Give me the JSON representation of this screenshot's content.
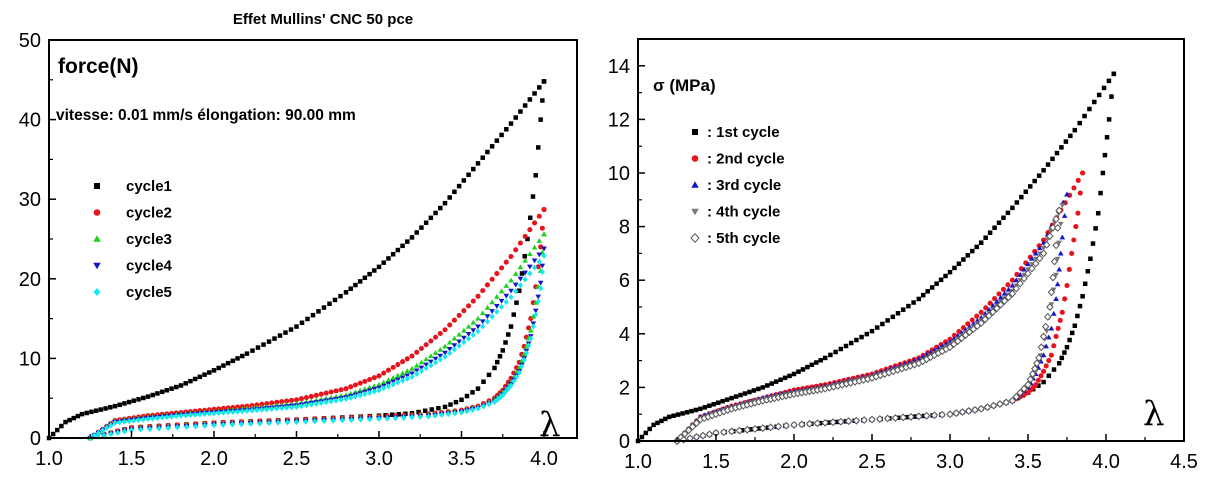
{
  "chart_data": [
    {
      "type": "scatter",
      "title": "Effet Mullins' CNC 50 pce",
      "ylabel": "force(N)",
      "xlabel": "λ",
      "annotation": "vitesse: 0.01 mm/s élongation: 90.00 mm",
      "xlim": [
        1.0,
        4.2
      ],
      "ylim": [
        0,
        50
      ],
      "xticks": [
        "1.0",
        "1.5",
        "2.0",
        "2.5",
        "3.0",
        "3.5",
        "4.0"
      ],
      "yticks": [
        "0",
        "10",
        "20",
        "30",
        "40",
        "50"
      ],
      "legend_position": "left",
      "series": [
        {
          "name": "cycle1",
          "color": "#000000",
          "marker": "square",
          "load": {
            "x": [
              1.0,
              1.1,
              1.2,
              1.4,
              1.6,
              1.8,
              2.0,
              2.2,
              2.5,
              2.8,
              3.0,
              3.2,
              3.4,
              3.6,
              3.8,
              4.0
            ],
            "y": [
              0,
              2.0,
              3.0,
              4.0,
              5.2,
              6.6,
              8.5,
              10.6,
              14.0,
              18.3,
              21.5,
              25.2,
              29.5,
              34.5,
              39.5,
              44.8
            ]
          },
          "unload": {
            "x": [
              4.0,
              3.98,
              3.95,
              3.9,
              3.85,
              3.8,
              3.75,
              3.7,
              3.6,
              3.5,
              3.4,
              3.2,
              3.0,
              2.5,
              2.0,
              1.5,
              1.25
            ],
            "y": [
              44.8,
              40.0,
              33.0,
              25.0,
              18.5,
              14.0,
              11.0,
              8.8,
              6.2,
              4.8,
              3.9,
              3.1,
              2.8,
              2.3,
              1.9,
              1.3,
              0
            ]
          }
        },
        {
          "name": "cycle2",
          "color": "#e8141c",
          "marker": "circle",
          "load": {
            "x": [
              1.25,
              1.4,
              1.6,
              1.8,
              2.0,
              2.2,
              2.5,
              2.8,
              3.0,
              3.2,
              3.4,
              3.6,
              3.8,
              4.0
            ],
            "y": [
              0,
              2.2,
              2.8,
              3.2,
              3.6,
              4.0,
              4.8,
              6.2,
              7.8,
              10.3,
              13.6,
              17.8,
              22.8,
              28.7
            ]
          },
          "unload": {
            "x": [
              4.0,
              3.98,
              3.95,
              3.92,
              3.88,
              3.85,
              3.8,
              3.75,
              3.7,
              3.6,
              3.5,
              3.3,
              3.0,
              2.5,
              2.0,
              1.5,
              1.25
            ],
            "y": [
              28.7,
              24.0,
              19.0,
              15.0,
              11.5,
              9.5,
              7.5,
              6.0,
              5.0,
              4.0,
              3.5,
              3.0,
              2.7,
              2.3,
              1.9,
              1.3,
              0
            ]
          }
        },
        {
          "name": "cycle3",
          "color": "#19d419",
          "marker": "triangle-up",
          "load": {
            "x": [
              1.25,
              1.4,
              1.6,
              1.8,
              2.0,
              2.2,
              2.5,
              2.8,
              3.0,
              3.2,
              3.4,
              3.6,
              3.8,
              4.0
            ],
            "y": [
              0,
              2.1,
              2.6,
              3.0,
              3.3,
              3.7,
              4.3,
              5.4,
              6.7,
              8.7,
              11.5,
              15.0,
              19.8,
              25.6
            ]
          },
          "unload": {
            "x": [
              4.0,
              3.98,
              3.95,
              3.92,
              3.88,
              3.85,
              3.8,
              3.75,
              3.7,
              3.6,
              3.5,
              3.3,
              3.0,
              2.5,
              2.0,
              1.5,
              1.25
            ],
            "y": [
              25.6,
              21.0,
              17.0,
              13.5,
              10.5,
              8.8,
              7.0,
              5.7,
              4.8,
              3.9,
              3.4,
              2.9,
              2.6,
              2.2,
              1.8,
              1.2,
              0
            ]
          }
        },
        {
          "name": "cycle4",
          "color": "#1414c8",
          "marker": "triangle-down",
          "load": {
            "x": [
              1.25,
              1.4,
              1.6,
              1.8,
              2.0,
              2.2,
              2.5,
              2.8,
              3.0,
              3.2,
              3.4,
              3.6,
              3.8,
              4.0
            ],
            "y": [
              0,
              2.0,
              2.5,
              2.9,
              3.2,
              3.5,
              4.1,
              5.1,
              6.3,
              8.1,
              10.7,
              14.0,
              18.5,
              23.8
            ]
          },
          "unload": {
            "x": [
              4.0,
              3.98,
              3.95,
              3.92,
              3.88,
              3.85,
              3.8,
              3.75,
              3.7,
              3.6,
              3.5,
              3.3,
              3.0,
              2.5,
              2.0,
              1.5,
              1.25
            ],
            "y": [
              23.8,
              19.5,
              16.0,
              12.8,
              10.0,
              8.4,
              6.8,
              5.5,
              4.6,
              3.8,
              3.3,
              2.8,
              2.5,
              2.1,
              1.7,
              1.1,
              0
            ]
          }
        },
        {
          "name": "cycle5",
          "color": "#14e8f0",
          "marker": "diamond",
          "load": {
            "x": [
              1.25,
              1.4,
              1.6,
              1.8,
              2.0,
              2.2,
              2.5,
              2.8,
              3.0,
              3.2,
              3.4,
              3.6,
              3.8,
              4.0
            ],
            "y": [
              0,
              1.9,
              2.4,
              2.8,
              3.1,
              3.4,
              3.9,
              4.9,
              6.0,
              7.7,
              10.2,
              13.4,
              17.7,
              22.9
            ]
          },
          "unload": {
            "x": [
              4.0,
              3.98,
              3.95,
              3.92,
              3.88,
              3.85,
              3.8,
              3.75,
              3.7,
              3.6,
              3.5,
              3.3,
              3.0,
              2.5,
              2.0,
              1.5,
              1.25
            ],
            "y": [
              22.9,
              18.8,
              15.5,
              12.5,
              9.8,
              8.2,
              6.6,
              5.4,
              4.5,
              3.7,
              3.2,
              2.7,
              2.4,
              2.0,
              1.6,
              1.0,
              0
            ]
          }
        }
      ]
    },
    {
      "type": "scatter",
      "title": "",
      "ylabel": "σ (MPa)",
      "xlabel": "λ",
      "xlim": [
        1.0,
        4.5
      ],
      "ylim": [
        0,
        15
      ],
      "xticks": [
        "1.0",
        "1.5",
        "2.0",
        "2.5",
        "3.0",
        "3.5",
        "4.0",
        "4.5"
      ],
      "yticks": [
        "0",
        "2",
        "4",
        "6",
        "8",
        "10",
        "12",
        "14"
      ],
      "legend_position": "upper-left",
      "series": [
        {
          "name": ": 1st cycle",
          "color": "#000000",
          "marker": "square",
          "load": {
            "x": [
              1.0,
              1.1,
              1.2,
              1.4,
              1.6,
              1.8,
              2.0,
              2.2,
              2.5,
              2.8,
              3.0,
              3.2,
              3.4,
              3.6,
              3.8,
              4.05
            ],
            "y": [
              0,
              0.6,
              0.9,
              1.2,
              1.6,
              2.0,
              2.5,
              3.1,
              4.1,
              5.3,
              6.3,
              7.4,
              8.7,
              10.1,
              11.6,
              13.7
            ]
          },
          "unload": {
            "x": [
              4.05,
              4.02,
              3.98,
              3.95,
              3.9,
              3.85,
              3.8,
              3.75,
              3.7,
              3.6,
              3.5,
              3.4,
              3.2,
              3.0,
              2.5,
              2.0,
              1.5,
              1.25
            ],
            "y": [
              13.7,
              12.0,
              10.0,
              8.5,
              6.8,
              5.4,
              4.3,
              3.5,
              2.9,
              2.2,
              1.8,
              1.5,
              1.2,
              1.0,
              0.8,
              0.6,
              0.3,
              0
            ]
          }
        },
        {
          "name": ": 2nd cycle",
          "color": "#e8141c",
          "marker": "circle",
          "load": {
            "x": [
              1.25,
              1.4,
              1.6,
              1.8,
              2.0,
              2.2,
              2.5,
              2.8,
              3.0,
              3.2,
              3.4,
              3.6,
              3.85
            ],
            "y": [
              0,
              0.9,
              1.3,
              1.6,
              1.9,
              2.1,
              2.5,
              3.1,
              3.8,
              4.8,
              6.0,
              7.5,
              10.0
            ]
          },
          "unload": {
            "x": [
              3.85,
              3.82,
              3.78,
              3.75,
              3.72,
              3.68,
              3.65,
              3.6,
              3.55,
              3.5,
              3.4,
              3.2,
              3.0,
              2.5,
              2.0,
              1.5,
              1.25
            ],
            "y": [
              10.0,
              8.5,
              7.0,
              5.8,
              4.8,
              3.9,
              3.2,
              2.6,
              2.1,
              1.8,
              1.5,
              1.2,
              1.0,
              0.8,
              0.6,
              0.3,
              0
            ]
          }
        },
        {
          "name": ": 3rd cycle",
          "color": "#1414c8",
          "marker": "triangle-up",
          "load": {
            "x": [
              1.25,
              1.4,
              1.6,
              1.8,
              2.0,
              2.2,
              2.5,
              2.8,
              3.0,
              3.2,
              3.4,
              3.6,
              3.75
            ],
            "y": [
              0,
              0.9,
              1.3,
              1.6,
              1.85,
              2.05,
              2.45,
              3.05,
              3.7,
              4.6,
              5.8,
              7.4,
              9.2
            ]
          },
          "unload": {
            "x": [
              3.75,
              3.72,
              3.7,
              3.68,
              3.65,
              3.6,
              3.55,
              3.5,
              3.4,
              3.2,
              3.0,
              2.5,
              2.0,
              1.5,
              1.25
            ],
            "y": [
              9.2,
              7.6,
              6.4,
              5.3,
              4.2,
              3.2,
              2.5,
              2.0,
              1.5,
              1.2,
              1.0,
              0.8,
              0.6,
              0.3,
              0
            ]
          }
        },
        {
          "name": ": 4th cycle",
          "color": "#787878",
          "marker": "triangle-down",
          "load": {
            "x": [
              1.25,
              1.4,
              1.6,
              1.8,
              2.0,
              2.2,
              2.5,
              2.8,
              3.0,
              3.2,
              3.4,
              3.6,
              3.72
            ],
            "y": [
              0,
              0.85,
              1.25,
              1.55,
              1.8,
              2.0,
              2.4,
              2.95,
              3.6,
              4.5,
              5.6,
              7.2,
              8.8
            ]
          },
          "unload": {
            "x": [
              3.72,
              3.7,
              3.68,
              3.65,
              3.62,
              3.58,
              3.55,
              3.5,
              3.4,
              3.2,
              3.0,
              2.5,
              2.0,
              1.5,
              1.25
            ],
            "y": [
              8.8,
              7.4,
              6.2,
              5.1,
              4.1,
              3.2,
              2.6,
              2.1,
              1.5,
              1.2,
              1.0,
              0.8,
              0.6,
              0.3,
              0
            ]
          }
        },
        {
          "name": ": 5th cycle",
          "color": "#555555",
          "marker": "diamond-open",
          "load": {
            "x": [
              1.25,
              1.4,
              1.6,
              1.8,
              2.0,
              2.2,
              2.5,
              2.8,
              3.0,
              3.2,
              3.4,
              3.6,
              3.7
            ],
            "y": [
              0,
              0.8,
              1.2,
              1.5,
              1.75,
              1.95,
              2.35,
              2.9,
              3.5,
              4.4,
              5.5,
              7.0,
              8.6
            ]
          },
          "unload": {
            "x": [
              3.7,
              3.68,
              3.66,
              3.64,
              3.6,
              3.57,
              3.53,
              3.5,
              3.4,
              3.2,
              3.0,
              2.5,
              2.0,
              1.5,
              1.25
            ],
            "y": [
              8.6,
              7.3,
              6.1,
              5.0,
              3.9,
              3.1,
              2.5,
              2.1,
              1.5,
              1.2,
              1.0,
              0.8,
              0.6,
              0.3,
              0
            ]
          }
        }
      ]
    }
  ]
}
